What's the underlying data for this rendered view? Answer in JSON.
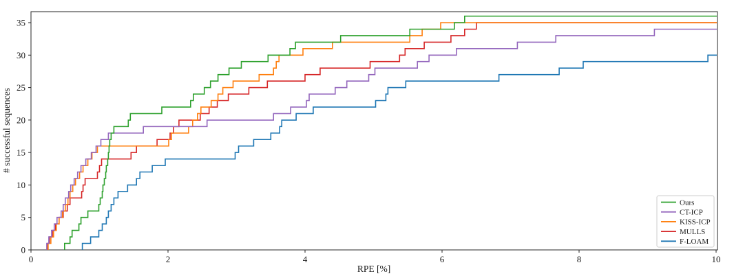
{
  "figure": {
    "xlabel": "RPE [%]",
    "ylabel": "# successful sequences"
  },
  "chart_data": {
    "type": "line",
    "subtype": "step-post-cumulative",
    "title": "",
    "xlabel": "RPE [%]",
    "ylabel": "# successful sequences",
    "xlim": [
      0,
      10.02
    ],
    "ylim": [
      0,
      36.7
    ],
    "grid": false,
    "x_ticks": [
      0,
      2,
      4,
      6,
      8,
      10
    ],
    "y_ticks": [
      0,
      5,
      10,
      15,
      20,
      25,
      30,
      35
    ],
    "legend_position": "lower right",
    "note": "Each series: step_x[i] is the RPE [%] threshold at which the cumulative count of successful sequences reaches i+1; lines extend flat to x=10.",
    "series": [
      {
        "name": "Ours",
        "color": "#2ca02c",
        "max_count": 36,
        "step_x": [
          0.49,
          0.57,
          0.6,
          0.7,
          0.73,
          0.83,
          0.99,
          1.01,
          1.04,
          1.05,
          1.07,
          1.09,
          1.1,
          1.12,
          1.13,
          1.14,
          1.15,
          1.17,
          1.21,
          1.42,
          1.45,
          1.91,
          2.33,
          2.37,
          2.53,
          2.62,
          2.73,
          2.89,
          3.07,
          3.46,
          3.78,
          3.86,
          4.52,
          5.53,
          6.18,
          6.33
        ]
      },
      {
        "name": "CT-ICP",
        "color": "#9467bd",
        "max_count": 34,
        "step_x": [
          0.23,
          0.26,
          0.3,
          0.34,
          0.38,
          0.44,
          0.47,
          0.5,
          0.55,
          0.58,
          0.63,
          0.68,
          0.73,
          0.8,
          0.88,
          0.95,
          1.02,
          1.13,
          1.64,
          2.57,
          3.54,
          3.79,
          4.02,
          4.06,
          4.44,
          4.61,
          4.93,
          5.02,
          5.64,
          5.81,
          6.21,
          7.1,
          7.66,
          9.1
        ]
      },
      {
        "name": "KISS-ICP",
        "color": "#ff7f0e",
        "max_count": 35,
        "step_x": [
          0.25,
          0.29,
          0.33,
          0.37,
          0.41,
          0.46,
          0.5,
          0.54,
          0.57,
          0.61,
          0.65,
          0.71,
          0.76,
          0.83,
          0.89,
          0.97,
          2.01,
          2.05,
          2.3,
          2.36,
          2.43,
          2.48,
          2.63,
          2.73,
          2.8,
          2.95,
          3.33,
          3.54,
          3.58,
          3.62,
          3.97,
          4.4,
          5.53,
          5.71,
          5.98
        ]
      },
      {
        "name": "MULLS",
        "color": "#d62728",
        "max_count": 35,
        "step_x": [
          0.24,
          0.27,
          0.32,
          0.36,
          0.41,
          0.47,
          0.53,
          0.57,
          0.74,
          0.76,
          0.79,
          0.97,
          1.0,
          1.03,
          1.46,
          1.54,
          1.84,
          2.03,
          2.08,
          2.16,
          2.47,
          2.6,
          2.72,
          2.88,
          3.18,
          3.45,
          4.0,
          4.22,
          4.95,
          5.38,
          5.46,
          5.74,
          6.13,
          6.33,
          6.5
        ]
      },
      {
        "name": "F-LOAM",
        "color": "#1f77b4",
        "max_count": 30,
        "step_x": [
          0.75,
          0.87,
          0.99,
          1.04,
          1.1,
          1.13,
          1.17,
          1.21,
          1.27,
          1.41,
          1.54,
          1.59,
          1.77,
          1.96,
          2.98,
          3.03,
          3.25,
          3.5,
          3.63,
          3.66,
          3.87,
          4.12,
          5.03,
          5.18,
          5.21,
          5.47,
          6.83,
          7.71,
          8.06,
          9.88
        ]
      }
    ],
    "draw_order": [
      "F-LOAM",
      "MULLS",
      "KISS-ICP",
      "CT-ICP",
      "Ours"
    ],
    "legend_order": [
      "Ours",
      "CT-ICP",
      "KISS-ICP",
      "MULLS",
      "F-LOAM"
    ]
  },
  "style": {
    "spine_color": "#262626",
    "tick_color": "#262626",
    "legend_border_color": "#cccccc",
    "background": "#ffffff",
    "line_width": 1.6
  }
}
